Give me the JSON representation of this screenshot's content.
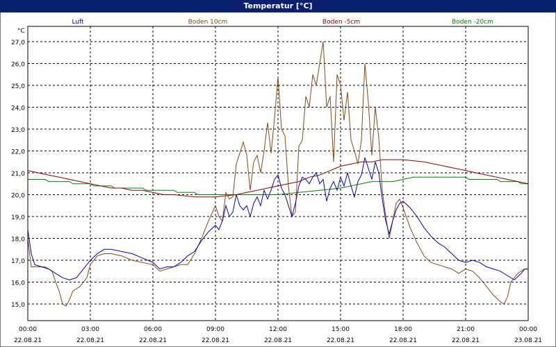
{
  "window": {
    "title": "Temperatur [°C]"
  },
  "chart_data": {
    "type": "line",
    "title": "Temperatur [°C]",
    "ylabel": "°C",
    "ylim": [
      14.0,
      27.5
    ],
    "xlim": [
      "2021-08-22 00:00",
      "2021-08-23 00:00"
    ],
    "y_ticks": [
      "15,0",
      "16,0",
      "17,0",
      "18,0",
      "19,0",
      "20,0",
      "21,0",
      "22,0",
      "23,0",
      "24,0",
      "25,0",
      "26,0",
      "27,0"
    ],
    "x_ticks": [
      {
        "time": "00:00",
        "date": "22.08.21"
      },
      {
        "time": "03:00",
        "date": "22.08.21"
      },
      {
        "time": "06:00",
        "date": "22.08.21"
      },
      {
        "time": "09:00",
        "date": "22.08.21"
      },
      {
        "time": "12:00",
        "date": "22.08.21"
      },
      {
        "time": "15:00",
        "date": "22.08.21"
      },
      {
        "time": "18:00",
        "date": "22.08.21"
      },
      {
        "time": "21:00",
        "date": "22.08.21"
      },
      {
        "time": "00:00",
        "date": "23.08.21"
      }
    ],
    "grid": true,
    "legend_position": "top",
    "series": [
      {
        "name": "Luft",
        "color": "#0000cc",
        "points": [
          [
            "00:00",
            18.4
          ],
          [
            "00:10",
            17.3
          ],
          [
            "00:20",
            16.8
          ],
          [
            "00:40",
            16.7
          ],
          [
            "01:00",
            16.6
          ],
          [
            "01:20",
            16.4
          ],
          [
            "01:40",
            16.2
          ],
          [
            "02:00",
            16.1
          ],
          [
            "02:20",
            16.2
          ],
          [
            "02:40",
            16.6
          ],
          [
            "03:00",
            17.0
          ],
          [
            "03:20",
            17.3
          ],
          [
            "03:40",
            17.5
          ],
          [
            "04:00",
            17.5
          ],
          [
            "04:30",
            17.4
          ],
          [
            "05:00",
            17.3
          ],
          [
            "05:30",
            17.1
          ],
          [
            "06:00",
            16.9
          ],
          [
            "06:20",
            16.6
          ],
          [
            "06:40",
            16.7
          ],
          [
            "07:00",
            16.7
          ],
          [
            "07:20",
            16.9
          ],
          [
            "07:40",
            17.2
          ],
          [
            "08:00",
            17.4
          ],
          [
            "08:20",
            17.9
          ],
          [
            "08:40",
            18.3
          ],
          [
            "09:00",
            18.6
          ],
          [
            "09:10",
            18.4
          ],
          [
            "09:20",
            18.8
          ],
          [
            "09:30",
            19.5
          ],
          [
            "09:40",
            19.0
          ],
          [
            "09:50",
            19.2
          ],
          [
            "10:00",
            20.0
          ],
          [
            "10:10",
            19.5
          ],
          [
            "10:20",
            19.3
          ],
          [
            "10:30",
            19.5
          ],
          [
            "10:40",
            19.0
          ],
          [
            "10:50",
            19.6
          ],
          [
            "11:00",
            19.9
          ],
          [
            "11:10",
            19.5
          ],
          [
            "11:20",
            20.2
          ],
          [
            "11:30",
            19.8
          ],
          [
            "11:40",
            20.2
          ],
          [
            "11:50",
            20.7
          ],
          [
            "12:00",
            20.9
          ],
          [
            "12:10",
            20.3
          ],
          [
            "12:20",
            20.0
          ],
          [
            "12:30",
            19.5
          ],
          [
            "12:40",
            19.0
          ],
          [
            "12:50",
            19.6
          ],
          [
            "13:00",
            20.4
          ],
          [
            "13:10",
            20.8
          ],
          [
            "13:20",
            20.7
          ],
          [
            "13:30",
            20.5
          ],
          [
            "13:40",
            20.8
          ],
          [
            "13:50",
            21.0
          ],
          [
            "14:00",
            20.5
          ],
          [
            "14:10",
            20.7
          ],
          [
            "14:20",
            19.7
          ],
          [
            "14:30",
            20.3
          ],
          [
            "14:40",
            20.6
          ],
          [
            "14:50",
            20.2
          ],
          [
            "15:00",
            20.8
          ],
          [
            "15:10",
            20.4
          ],
          [
            "15:20",
            21.0
          ],
          [
            "15:30",
            20.4
          ],
          [
            "15:40",
            19.9
          ],
          [
            "15:50",
            20.6
          ],
          [
            "16:00",
            20.9
          ],
          [
            "16:10",
            21.7
          ],
          [
            "16:20",
            21.2
          ],
          [
            "16:30",
            20.7
          ],
          [
            "16:40",
            21.5
          ],
          [
            "16:50",
            21.0
          ],
          [
            "17:00",
            19.8
          ],
          [
            "17:10",
            18.8
          ],
          [
            "17:20",
            18.2
          ],
          [
            "17:30",
            18.8
          ],
          [
            "17:40",
            19.3
          ],
          [
            "17:50",
            19.6
          ],
          [
            "18:00",
            19.7
          ],
          [
            "18:20",
            19.4
          ],
          [
            "18:40",
            19.0
          ],
          [
            "19:00",
            18.5
          ],
          [
            "19:20",
            18.1
          ],
          [
            "19:40",
            17.8
          ],
          [
            "20:00",
            17.6
          ],
          [
            "20:20",
            17.3
          ],
          [
            "20:40",
            17.0
          ],
          [
            "21:00",
            16.9
          ],
          [
            "21:20",
            17.0
          ],
          [
            "21:40",
            16.9
          ],
          [
            "22:00",
            16.7
          ],
          [
            "22:20",
            16.6
          ],
          [
            "22:40",
            16.5
          ],
          [
            "23:00",
            16.3
          ],
          [
            "23:20",
            16.1
          ],
          [
            "23:40",
            16.4
          ],
          [
            "23:50",
            16.6
          ],
          [
            "24:00",
            16.6
          ]
        ]
      },
      {
        "name": "Boden 10cm",
        "color": "#8b4513",
        "points": [
          [
            "00:00",
            18.0
          ],
          [
            "00:10",
            16.7
          ],
          [
            "00:30",
            16.7
          ],
          [
            "00:50",
            16.7
          ],
          [
            "01:10",
            16.5
          ],
          [
            "01:20",
            16.0
          ],
          [
            "01:30",
            15.6
          ],
          [
            "01:40",
            15.0
          ],
          [
            "01:50",
            14.9
          ],
          [
            "02:00",
            15.2
          ],
          [
            "02:10",
            15.6
          ],
          [
            "02:30",
            15.8
          ],
          [
            "02:50",
            16.2
          ],
          [
            "03:00",
            16.8
          ],
          [
            "03:20",
            17.2
          ],
          [
            "03:40",
            17.3
          ],
          [
            "04:00",
            17.3
          ],
          [
            "04:30",
            17.2
          ],
          [
            "05:00",
            17.0
          ],
          [
            "05:30",
            16.9
          ],
          [
            "06:00",
            16.8
          ],
          [
            "06:20",
            16.5
          ],
          [
            "06:40",
            16.6
          ],
          [
            "07:00",
            16.7
          ],
          [
            "07:20",
            16.8
          ],
          [
            "07:40",
            16.8
          ],
          [
            "08:00",
            17.3
          ],
          [
            "08:20",
            18.0
          ],
          [
            "08:40",
            18.8
          ],
          [
            "09:00",
            19.5
          ],
          [
            "09:10",
            19.0
          ],
          [
            "09:20",
            18.8
          ],
          [
            "09:30",
            20.1
          ],
          [
            "09:40",
            19.8
          ],
          [
            "09:50",
            19.9
          ],
          [
            "10:00",
            21.4
          ],
          [
            "10:10",
            21.9
          ],
          [
            "10:20",
            22.4
          ],
          [
            "10:30",
            21.8
          ],
          [
            "10:40",
            20.2
          ],
          [
            "10:50",
            21.5
          ],
          [
            "11:00",
            21.8
          ],
          [
            "11:10",
            21.0
          ],
          [
            "11:20",
            22.0
          ],
          [
            "11:30",
            23.3
          ],
          [
            "11:40",
            21.9
          ],
          [
            "11:50",
            23.5
          ],
          [
            "12:00",
            25.4
          ],
          [
            "12:10",
            23.0
          ],
          [
            "12:20",
            22.7
          ],
          [
            "12:30",
            20.4
          ],
          [
            "12:40",
            19.0
          ],
          [
            "12:50",
            19.2
          ],
          [
            "13:00",
            22.2
          ],
          [
            "13:10",
            22.5
          ],
          [
            "13:20",
            24.5
          ],
          [
            "13:30",
            24.0
          ],
          [
            "13:40",
            25.5
          ],
          [
            "13:50",
            25.0
          ],
          [
            "14:00",
            26.0
          ],
          [
            "14:10",
            27.0
          ],
          [
            "14:20",
            24.0
          ],
          [
            "14:30",
            24.5
          ],
          [
            "14:40",
            21.5
          ],
          [
            "14:50",
            25.5
          ],
          [
            "15:00",
            25.0
          ],
          [
            "15:10",
            23.4
          ],
          [
            "15:20",
            24.7
          ],
          [
            "15:30",
            22.5
          ],
          [
            "15:40",
            22.0
          ],
          [
            "15:50",
            21.4
          ],
          [
            "16:00",
            22.5
          ],
          [
            "16:10",
            26.0
          ],
          [
            "16:20",
            24.2
          ],
          [
            "16:30",
            21.8
          ],
          [
            "16:40",
            24.0
          ],
          [
            "16:50",
            22.6
          ],
          [
            "17:00",
            20.2
          ],
          [
            "17:10",
            19.0
          ],
          [
            "17:20",
            18.0
          ],
          [
            "17:30",
            18.8
          ],
          [
            "17:40",
            19.6
          ],
          [
            "17:50",
            19.8
          ],
          [
            "18:00",
            19.4
          ],
          [
            "18:20",
            18.5
          ],
          [
            "18:40",
            17.8
          ],
          [
            "19:00",
            17.2
          ],
          [
            "19:20",
            16.9
          ],
          [
            "19:40",
            16.8
          ],
          [
            "20:00",
            16.7
          ],
          [
            "20:20",
            16.6
          ],
          [
            "20:40",
            16.4
          ],
          [
            "21:00",
            16.6
          ],
          [
            "21:20",
            16.5
          ],
          [
            "21:40",
            16.2
          ],
          [
            "22:00",
            15.8
          ],
          [
            "22:20",
            15.4
          ],
          [
            "22:40",
            15.1
          ],
          [
            "22:50",
            15.0
          ],
          [
            "23:00",
            15.3
          ],
          [
            "23:10",
            16.0
          ],
          [
            "23:30",
            16.4
          ],
          [
            "23:50",
            16.6
          ],
          [
            "24:00",
            16.6
          ]
        ]
      },
      {
        "name": "Boden -5cm",
        "color": "#8b0000",
        "points": [
          [
            "00:00",
            21.1
          ],
          [
            "00:30",
            21.0
          ],
          [
            "01:00",
            20.9
          ],
          [
            "01:30",
            20.8
          ],
          [
            "02:00",
            20.7
          ],
          [
            "02:30",
            20.6
          ],
          [
            "03:00",
            20.5
          ],
          [
            "03:30",
            20.4
          ],
          [
            "04:00",
            20.3
          ],
          [
            "04:30",
            20.3
          ],
          [
            "05:00",
            20.2
          ],
          [
            "05:30",
            20.2
          ],
          [
            "06:00",
            20.1
          ],
          [
            "06:30",
            20.0
          ],
          [
            "07:00",
            20.0
          ],
          [
            "08:00",
            19.9
          ],
          [
            "09:00",
            19.9
          ],
          [
            "10:00",
            20.0
          ],
          [
            "10:30",
            20.1
          ],
          [
            "11:00",
            20.2
          ],
          [
            "11:30",
            20.3
          ],
          [
            "12:00",
            20.4
          ],
          [
            "12:30",
            20.5
          ],
          [
            "13:00",
            20.6
          ],
          [
            "13:30",
            20.8
          ],
          [
            "14:00",
            20.9
          ],
          [
            "14:30",
            21.1
          ],
          [
            "15:00",
            21.3
          ],
          [
            "15:30",
            21.4
          ],
          [
            "16:00",
            21.5
          ],
          [
            "16:30",
            21.5
          ],
          [
            "17:00",
            21.6
          ],
          [
            "17:30",
            21.6
          ],
          [
            "18:00",
            21.6
          ],
          [
            "19:00",
            21.5
          ],
          [
            "20:00",
            21.3
          ],
          [
            "21:00",
            21.1
          ],
          [
            "22:00",
            20.9
          ],
          [
            "23:00",
            20.7
          ],
          [
            "23:30",
            20.6
          ],
          [
            "24:00",
            20.5
          ]
        ]
      },
      {
        "name": "Boden -20cm",
        "color": "#008000",
        "points": [
          [
            "00:00",
            20.7
          ],
          [
            "00:50",
            20.7
          ],
          [
            "01:00",
            20.6
          ],
          [
            "02:00",
            20.6
          ],
          [
            "02:10",
            20.5
          ],
          [
            "03:00",
            20.5
          ],
          [
            "03:10",
            20.4
          ],
          [
            "04:00",
            20.4
          ],
          [
            "04:10",
            20.3
          ],
          [
            "05:30",
            20.3
          ],
          [
            "05:40",
            20.2
          ],
          [
            "07:00",
            20.2
          ],
          [
            "07:10",
            20.1
          ],
          [
            "08:00",
            20.1
          ],
          [
            "08:10",
            20.0
          ],
          [
            "12:00",
            20.0
          ],
          [
            "13:00",
            20.1
          ],
          [
            "14:00",
            20.2
          ],
          [
            "15:00",
            20.3
          ],
          [
            "15:30",
            20.4
          ],
          [
            "16:00",
            20.5
          ],
          [
            "16:30",
            20.6
          ],
          [
            "17:30",
            20.6
          ],
          [
            "18:00",
            20.7
          ],
          [
            "18:30",
            20.8
          ],
          [
            "21:00",
            20.8
          ],
          [
            "21:10",
            20.7
          ],
          [
            "22:30",
            20.7
          ],
          [
            "22:40",
            20.6
          ],
          [
            "23:30",
            20.6
          ],
          [
            "23:40",
            20.5
          ],
          [
            "24:00",
            20.5
          ]
        ]
      }
    ]
  }
}
